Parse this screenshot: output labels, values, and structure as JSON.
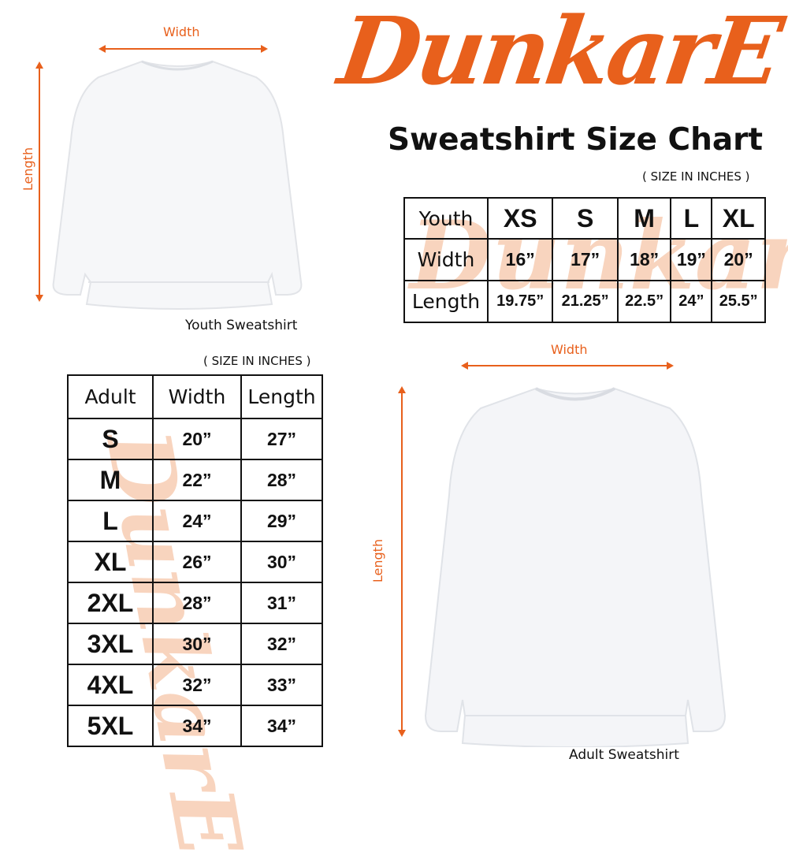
{
  "brand": {
    "logo_text": "DunkarE",
    "accent_color": "#e8601c"
  },
  "title": "Sweatshirt Size Chart",
  "youth": {
    "width_label": "Width",
    "length_label": "Length",
    "caption": "Youth Sweatshirt",
    "units_note": "( SIZE IN INCHES )",
    "table": {
      "header": [
        "Youth",
        "XS",
        "S",
        "M",
        "L",
        "XL"
      ],
      "rows": [
        [
          "Width",
          "16”",
          "17”",
          "18”",
          "19”",
          "20”"
        ],
        [
          "Length",
          "19.75”",
          "21.25”",
          "22.5”",
          "24”",
          "25.5”"
        ]
      ]
    }
  },
  "adult": {
    "width_label": "Width",
    "length_label": "Length",
    "caption": "Adult Sweatshirt",
    "units_note": "( SIZE IN INCHES )",
    "table": {
      "header": [
        "Adult",
        "Width",
        "Length"
      ],
      "rows": [
        [
          "S",
          "20”",
          "27”"
        ],
        [
          "M",
          "22”",
          "28”"
        ],
        [
          "L",
          "24”",
          "29”"
        ],
        [
          "XL",
          "26”",
          "30”"
        ],
        [
          "2XL",
          "28”",
          "31”"
        ],
        [
          "3XL",
          "30”",
          "32”"
        ],
        [
          "4XL",
          "32”",
          "33”"
        ],
        [
          "5XL",
          "34”",
          "34”"
        ]
      ]
    }
  }
}
